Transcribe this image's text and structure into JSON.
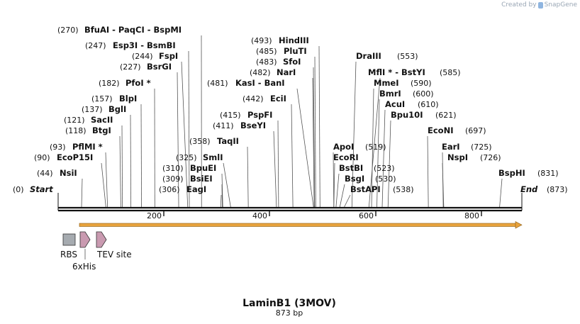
{
  "credit": {
    "prefix": "Created by",
    "logo_text": "SnapGene"
  },
  "map": {
    "name": "LaminB1 (3MOV)",
    "length_label": "873 bp",
    "start_label": "Start",
    "start_pos": "(0)",
    "end_label": "End",
    "end_pos": "(873)"
  },
  "scale": {
    "ticks": [
      "200",
      "400",
      "600",
      "800"
    ]
  },
  "enzymes": [
    {
      "name": "BfuAI - PaqCI - BspMI",
      "pos": "(270)"
    },
    {
      "name": "Esp3I - BsmBI",
      "pos": "(247)"
    },
    {
      "name": "FspI",
      "pos": "(244)"
    },
    {
      "name": "BsrGI",
      "pos": "(227)"
    },
    {
      "name": "PfoI *",
      "pos": "(182)"
    },
    {
      "name": "BlpI",
      "pos": "(157)"
    },
    {
      "name": "BglI",
      "pos": "(137)"
    },
    {
      "name": "SacII",
      "pos": "(121)"
    },
    {
      "name": "BtgI",
      "pos": "(118)"
    },
    {
      "name": "PflMI *",
      "pos": "(93)"
    },
    {
      "name": "EcoP15I",
      "pos": "(90)"
    },
    {
      "name": "NsiI",
      "pos": "(44)"
    },
    {
      "name": "HindIII",
      "pos": "(493)"
    },
    {
      "name": "PluTI",
      "pos": "(485)"
    },
    {
      "name": "SfoI",
      "pos": "(483)"
    },
    {
      "name": "NarI",
      "pos": "(482)"
    },
    {
      "name": "KasI - BanI",
      "pos": "(481)"
    },
    {
      "name": "EciI",
      "pos": "(442)"
    },
    {
      "name": "PspFI",
      "pos": "(415)"
    },
    {
      "name": "BseYI",
      "pos": "(411)"
    },
    {
      "name": "TaqII",
      "pos": "(358)"
    },
    {
      "name": "SmlI",
      "pos": "(325)"
    },
    {
      "name": "BpuEI",
      "pos": "(310)"
    },
    {
      "name": "BsiEI",
      "pos": "(309)"
    },
    {
      "name": "EagI",
      "pos": "(306)"
    },
    {
      "name": "DraIII",
      "pos": "(553)"
    },
    {
      "name": "MflI * - BstYI",
      "pos": "(585)"
    },
    {
      "name": "MmeI",
      "pos": "(590)"
    },
    {
      "name": "BmrI",
      "pos": "(600)"
    },
    {
      "name": "AcuI",
      "pos": "(610)"
    },
    {
      "name": "Bpu10I",
      "pos": "(621)"
    },
    {
      "name": "ApoI",
      "pos": "(519)"
    },
    {
      "name": "EcoRI",
      "pos": ""
    },
    {
      "name": "BstBI",
      "pos": "(523)"
    },
    {
      "name": "BsgI",
      "pos": "(530)"
    },
    {
      "name": "BstAPI",
      "pos": "(538)"
    },
    {
      "name": "EcoNI",
      "pos": "(697)"
    },
    {
      "name": "EarI",
      "pos": "(725)"
    },
    {
      "name": "NspI",
      "pos": "(726)"
    },
    {
      "name": "BspHI",
      "pos": "(831)"
    }
  ],
  "features": [
    {
      "name": "RBS"
    },
    {
      "name": "6xHis"
    },
    {
      "name": "TEV site"
    }
  ],
  "colors": {
    "orf_arrow": "#e8a33d",
    "rbs_box": "#a6abb0",
    "his_arrow": "#c99ab0",
    "backbone": "#111111"
  }
}
